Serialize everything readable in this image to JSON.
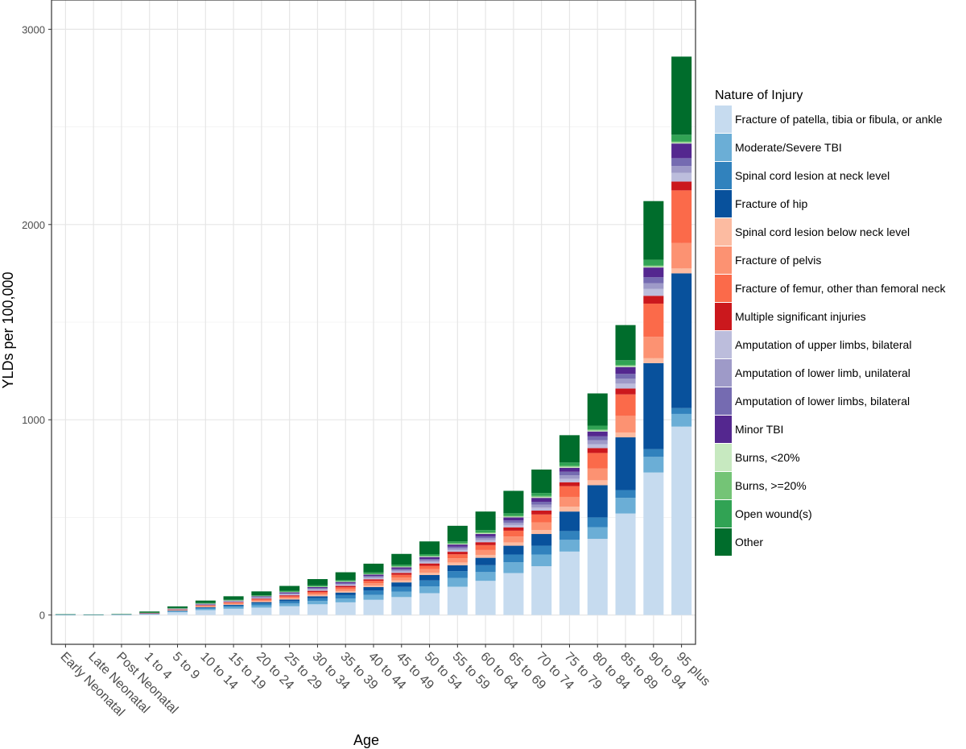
{
  "chart_data": {
    "type": "bar",
    "stacked": true,
    "xlabel": "Age",
    "ylabel": "YLDs per 100,000",
    "ylim": [
      -150,
      3150
    ],
    "yticks": [
      0,
      1000,
      2000,
      3000
    ],
    "grid": true,
    "legend_title": "Nature of Injury",
    "legend_position": "right",
    "categories": [
      "Early Neonatal",
      "Late Neonatal",
      "Post Neonatal",
      "1 to 4",
      "5 to 9",
      "10 to 14",
      "15 to 19",
      "20 to 24",
      "25 to 29",
      "30 to 34",
      "35 to 39",
      "40 to 44",
      "45 to 49",
      "50 to 54",
      "55 to 59",
      "60 to 64",
      "65 to 69",
      "70 to 74",
      "75 to 79",
      "80 to 84",
      "85 to 89",
      "90 to 94",
      "95 plus"
    ],
    "series": [
      {
        "name": "Fracture of patella, tibia or fibula, or ankle",
        "color": "#c6dbef",
        "values": [
          1,
          1,
          2,
          5,
          14,
          25,
          32,
          38,
          45,
          55,
          65,
          78,
          92,
          112,
          145,
          175,
          215,
          250,
          325,
          390,
          520,
          730,
          965
        ]
      },
      {
        "name": "Moderate/Severe TBI",
        "color": "#6baed6",
        "values": [
          0.5,
          0.5,
          0.5,
          1,
          4,
          7,
          9,
          12,
          14,
          17,
          20,
          25,
          28,
          35,
          45,
          45,
          55,
          60,
          60,
          60,
          80,
          80,
          65
        ]
      },
      {
        "name": "Spinal cord lesion at neck level",
        "color": "#3182bd",
        "values": [
          0.5,
          0.5,
          0.5,
          1,
          3,
          5,
          7,
          10,
          12,
          14,
          17,
          22,
          24,
          30,
          35,
          35,
          40,
          45,
          45,
          50,
          40,
          40,
          30
        ]
      },
      {
        "name": "Fracture of hip",
        "color": "#08519c",
        "values": [
          0,
          0,
          0,
          0.5,
          2,
          3,
          4,
          6,
          8,
          10,
          13,
          18,
          23,
          28,
          30,
          38,
          45,
          60,
          100,
          165,
          270,
          440,
          690
        ]
      },
      {
        "name": "Spinal cord lesion below neck level",
        "color": "#fcbba1",
        "values": [
          0,
          0,
          0,
          0.5,
          1,
          2,
          3,
          4,
          5,
          6,
          7,
          8,
          10,
          12,
          14,
          15,
          17,
          20,
          25,
          25,
          25,
          25,
          25
        ]
      },
      {
        "name": "Fracture of pelvis",
        "color": "#fc9272",
        "values": [
          0,
          0,
          0,
          0.5,
          2,
          3,
          4,
          5,
          6,
          8,
          10,
          12,
          15,
          18,
          22,
          25,
          30,
          40,
          50,
          60,
          85,
          110,
          130
        ]
      },
      {
        "name": "Fracture of femur, other than femoral neck",
        "color": "#fb6a4a",
        "values": [
          0,
          0,
          0,
          0.5,
          2,
          3,
          4,
          5,
          6,
          8,
          10,
          12,
          14,
          17,
          20,
          25,
          30,
          40,
          55,
          80,
          110,
          170,
          270
        ]
      },
      {
        "name": "Multiple significant injuries",
        "color": "#cb181d",
        "values": [
          0,
          0,
          0,
          0.5,
          1,
          2,
          3,
          4,
          5,
          6,
          7,
          8,
          10,
          12,
          13,
          15,
          17,
          20,
          20,
          25,
          30,
          40,
          45
        ]
      },
      {
        "name": "Amputation of upper limbs, bilateral",
        "color": "#bcbddc",
        "values": [
          0,
          0,
          0,
          0.5,
          1,
          2,
          2,
          3,
          4,
          5,
          5,
          6,
          7,
          8,
          9,
          10,
          12,
          15,
          18,
          20,
          25,
          35,
          45
        ]
      },
      {
        "name": "Amputation of lower limb, unilateral",
        "color": "#9e9ac8",
        "values": [
          0,
          0,
          0,
          0.5,
          1,
          2,
          2,
          3,
          4,
          5,
          5,
          6,
          7,
          8,
          9,
          10,
          12,
          15,
          18,
          20,
          25,
          30,
          35
        ]
      },
      {
        "name": "Amputation of lower limbs, bilateral",
        "color": "#756bb1",
        "values": [
          0,
          0,
          0,
          0.5,
          1,
          2,
          2,
          3,
          3,
          4,
          4,
          5,
          6,
          7,
          8,
          10,
          12,
          15,
          18,
          20,
          25,
          30,
          40
        ]
      },
      {
        "name": "Minor TBI",
        "color": "#54278f",
        "values": [
          0,
          0,
          0,
          0.5,
          1,
          2,
          2,
          3,
          4,
          5,
          6,
          7,
          8,
          10,
          11,
          12,
          15,
          20,
          20,
          25,
          35,
          50,
          75
        ]
      },
      {
        "name": "Burns, <20%",
        "color": "#c7e9c0",
        "values": [
          0,
          0,
          0,
          0.5,
          1,
          1,
          1,
          1,
          2,
          2,
          2,
          2,
          3,
          3,
          3,
          4,
          4,
          5,
          5,
          5,
          5,
          5,
          5
        ]
      },
      {
        "name": "Burns, >=20%",
        "color": "#74c476",
        "values": [
          0,
          0,
          0,
          0.5,
          1,
          1,
          1,
          1,
          2,
          2,
          2,
          2,
          3,
          3,
          3,
          4,
          4,
          5,
          5,
          5,
          5,
          5,
          5
        ]
      },
      {
        "name": "Open wound(s)",
        "color": "#31a354",
        "values": [
          0,
          0,
          0,
          0.5,
          1,
          2,
          2,
          3,
          4,
          5,
          6,
          7,
          8,
          9,
          10,
          12,
          13,
          15,
          17,
          20,
          25,
          30,
          35
        ]
      },
      {
        "name": "Other",
        "color": "#006d2c",
        "values": [
          2,
          1,
          2,
          5,
          8,
          12,
          18,
          20,
          25,
          32,
          40,
          45,
          55,
          65,
          80,
          95,
          115,
          120,
          140,
          165,
          180,
          300,
          400
        ]
      }
    ]
  }
}
